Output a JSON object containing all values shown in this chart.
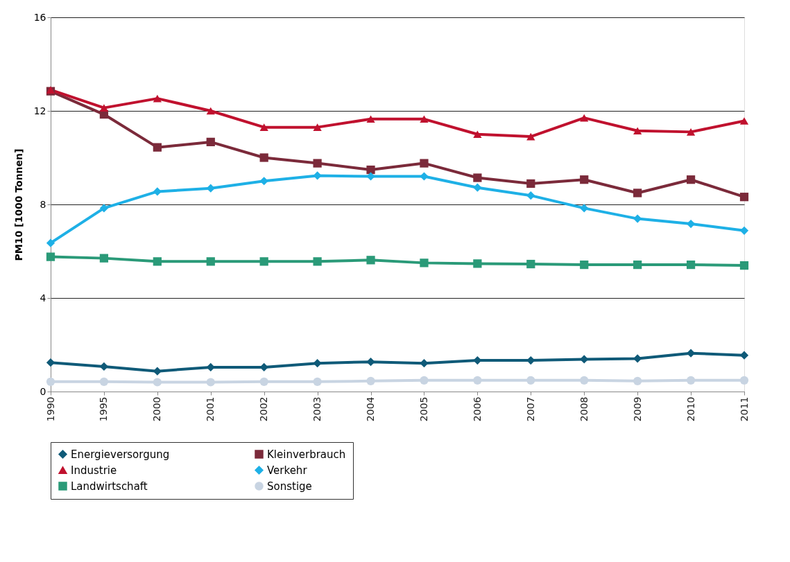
{
  "chart_data": {
    "type": "line",
    "ylabel": "PM10 [1000 Tonnen]",
    "categories": [
      "1990",
      "1995",
      "2000",
      "2001",
      "2002",
      "2003",
      "2004",
      "2005",
      "2006",
      "2007",
      "2008",
      "2009",
      "2010",
      "2011"
    ],
    "ylim": [
      0,
      16
    ],
    "yticks": [
      0,
      4,
      8,
      12,
      16
    ],
    "grid": "y",
    "legend": "bottom",
    "line_style": "solid",
    "series": [
      {
        "name": "Energieversorgung",
        "color": "#0f5a78",
        "marker": "diamond",
        "values": [
          1.24,
          1.07,
          0.87,
          1.04,
          1.04,
          1.21,
          1.27,
          1.21,
          1.33,
          1.33,
          1.38,
          1.41,
          1.64,
          1.55
        ]
      },
      {
        "name": "Kleinverbrauch",
        "color": "#7b2a3a",
        "marker": "square",
        "values": [
          12.84,
          11.85,
          10.44,
          10.67,
          10.0,
          9.76,
          9.48,
          9.76,
          9.14,
          8.89,
          9.06,
          8.49,
          9.06,
          8.32
        ]
      },
      {
        "name": "Industrie",
        "color": "#c0112e",
        "marker": "triangle",
        "values": [
          12.9,
          12.13,
          12.53,
          12.0,
          11.3,
          11.3,
          11.65,
          11.65,
          11.0,
          10.9,
          11.7,
          11.15,
          11.1,
          11.57
        ]
      },
      {
        "name": "Verkehr",
        "color": "#1eb0e6",
        "marker": "diamond",
        "values": [
          6.35,
          7.84,
          8.55,
          8.69,
          9.0,
          9.23,
          9.2,
          9.2,
          8.72,
          8.38,
          7.84,
          7.39,
          7.17,
          6.88
        ]
      },
      {
        "name": "Landwirtschaft",
        "color": "#2a9a78",
        "marker": "square",
        "values": [
          5.76,
          5.7,
          5.56,
          5.56,
          5.56,
          5.56,
          5.62,
          5.5,
          5.47,
          5.45,
          5.42,
          5.42,
          5.42,
          5.39
        ]
      },
      {
        "name": "Sonstige",
        "color": "#c8d4e2",
        "marker": "circle",
        "values": [
          0.42,
          0.42,
          0.4,
          0.4,
          0.42,
          0.42,
          0.45,
          0.48,
          0.48,
          0.48,
          0.48,
          0.45,
          0.48,
          0.48
        ]
      }
    ]
  }
}
